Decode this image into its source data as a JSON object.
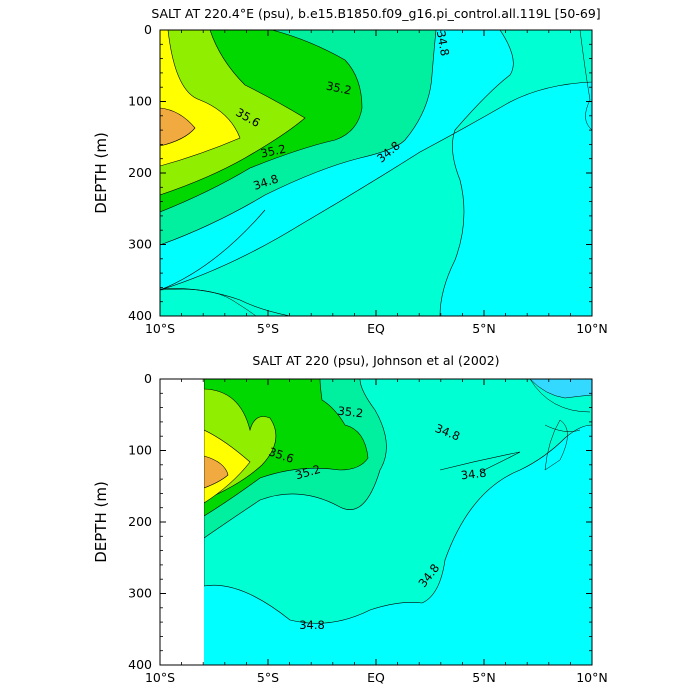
{
  "chart_data": [
    {
      "type": "contour",
      "title": "SALT AT 220.4°E (psu), b.e15.B1850.f09_g16.pi_control.all.119L [50-69]",
      "ylabel": "DEPTH (m)",
      "xlim": [
        -10,
        10
      ],
      "ylim": [
        400,
        0
      ],
      "x_ticks": [
        {
          "value": -10,
          "label": "10°S"
        },
        {
          "value": -5,
          "label": "5°S"
        },
        {
          "value": 0,
          "label": "EQ"
        },
        {
          "value": 5,
          "label": "5°N"
        },
        {
          "value": 10,
          "label": "10°N"
        }
      ],
      "y_ticks": [
        0,
        100,
        200,
        300,
        400
      ],
      "contour_levels": [
        34.6,
        34.8,
        35.0,
        35.2,
        35.4,
        35.6,
        35.8
      ],
      "contour_labels": [
        "35.2",
        "35.6",
        "35.2",
        "34.8",
        "34.8",
        "34.8"
      ],
      "data_x_range": [
        -10,
        10
      ]
    },
    {
      "type": "contour",
      "title": "SALT AT 220 (psu), Johnson et al (2002)",
      "ylabel": "DEPTH (m)",
      "xlim": [
        -10,
        10
      ],
      "ylim": [
        400,
        0
      ],
      "x_ticks": [
        {
          "value": -10,
          "label": "10°S"
        },
        {
          "value": -5,
          "label": "5°S"
        },
        {
          "value": 0,
          "label": "EQ"
        },
        {
          "value": 5,
          "label": "5°N"
        },
        {
          "value": 10,
          "label": "10°N"
        }
      ],
      "y_ticks": [
        0,
        100,
        200,
        300,
        400
      ],
      "contour_levels": [
        34.6,
        34.8,
        35.0,
        35.2,
        35.4,
        35.6,
        35.8
      ],
      "contour_labels": [
        "35.2",
        "35.6",
        "35.2",
        "34.8",
        "34.8",
        "34.8",
        "34.8"
      ],
      "data_x_range": [
        -8,
        10
      ]
    }
  ],
  "colors": {
    "cyan_light": "#33d9ff",
    "cyan": "#00ffff",
    "aquamarine": "#00ffd2",
    "green_light": "#00f0a0",
    "green": "#00d800",
    "lime": "#90ee00",
    "yellow": "#ffff00",
    "orange": "#f0aa40"
  }
}
